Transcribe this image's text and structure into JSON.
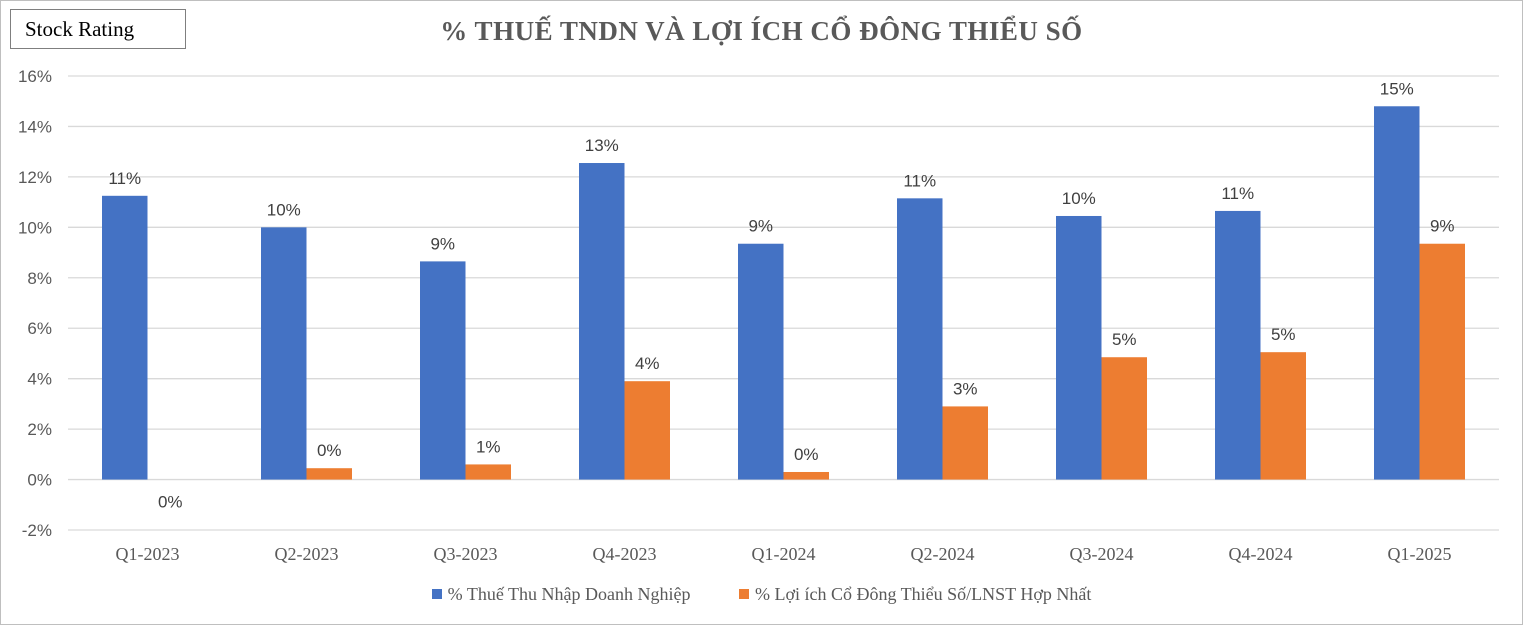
{
  "badge": {
    "label": "Stock Rating"
  },
  "chart_data": {
    "type": "bar",
    "title": "% THUẾ TNDN VÀ LỢI ÍCH CỔ ĐÔNG THIỂU SỐ",
    "categories": [
      "Q1-2023",
      "Q2-2023",
      "Q3-2023",
      "Q4-2023",
      "Q1-2024",
      "Q2-2024",
      "Q3-2024",
      "Q4-2024",
      "Q1-2025"
    ],
    "series": [
      {
        "name": "% Thuế Thu Nhập Doanh Nghiệp",
        "color": "#4472c4",
        "values": [
          11.25,
          10.0,
          8.65,
          12.55,
          9.35,
          11.15,
          10.45,
          10.65,
          14.8
        ],
        "labels": [
          "11%",
          "10%",
          "9%",
          "13%",
          "9%",
          "11%",
          "10%",
          "11%",
          "15%"
        ]
      },
      {
        "name": "% Lợi ích Cổ Đông Thiểu Số/LNST Hợp Nhất",
        "color": "#ed7d31",
        "values": [
          0.0,
          0.45,
          0.6,
          3.9,
          0.3,
          2.9,
          4.85,
          5.05,
          9.35
        ],
        "labels": [
          "0%",
          "0%",
          "1%",
          "4%",
          "0%",
          "3%",
          "5%",
          "5%",
          "9%"
        ]
      }
    ],
    "ylim": [
      -2,
      16
    ],
    "yticks": [
      -2,
      0,
      2,
      4,
      6,
      8,
      10,
      12,
      14,
      16
    ],
    "ytick_labels": [
      "-2%",
      "0%",
      "2%",
      "4%",
      "6%",
      "8%",
      "10%",
      "12%",
      "14%",
      "16%"
    ],
    "grid": true,
    "legend_position": "bottom"
  }
}
